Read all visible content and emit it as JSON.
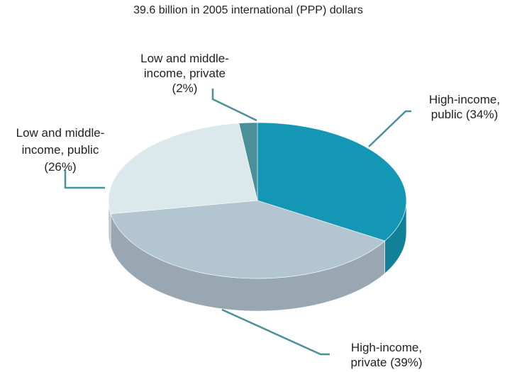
{
  "chart_data": {
    "type": "pie3d",
    "title": "39.6 billion in 2005 international (PPP) dollars",
    "categories": [
      "High-income, public",
      "High-income, private",
      "Low and middle-income, public",
      "Low and middle-income, private"
    ],
    "values": [
      34,
      39,
      26,
      2
    ],
    "value_labels": [
      "(34%)",
      "(39%)",
      "(26%)",
      "(2%)"
    ],
    "colors": [
      "#1497b4",
      "#b3c5d0",
      "#dbe9ec",
      "#4a8f99"
    ]
  }
}
